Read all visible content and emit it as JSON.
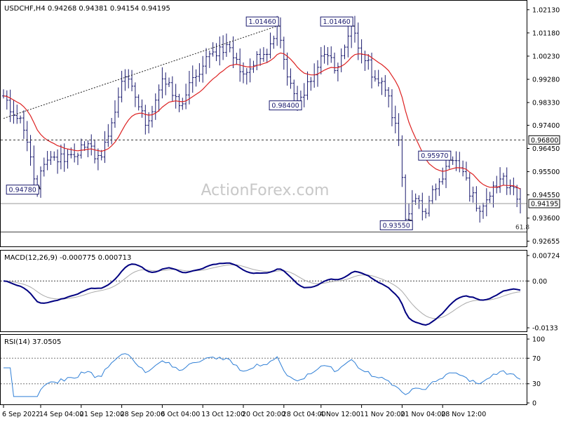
{
  "chart_data": [
    {
      "type": "ohlc",
      "title": "USDCHF,H4 0.94268 0.94381 0.94154 0.94195",
      "watermark": "ActionForex.com",
      "y_ticks": [
        "1.02130",
        "1.01180",
        "1.00230",
        "0.99280",
        "0.98330",
        "0.97400",
        "0.96450",
        "0.95500",
        "0.94550",
        "0.93600",
        "0.92655"
      ],
      "ylim": [
        0.9247,
        1.0247
      ],
      "current_price_label": "0.94195",
      "current_price": 0.94195,
      "level_label": "0.96800",
      "level": 0.968,
      "fib_label": "61.8",
      "fib_level": 0.9303,
      "annotations": [
        {
          "text": "1.01460",
          "price": 1.0146,
          "bar": 81
        },
        {
          "text": "1.01460",
          "price": 1.0146,
          "bar": 103
        },
        {
          "text": "0.98400",
          "price": 0.984,
          "bar": 87
        },
        {
          "text": "0.94780",
          "price": 0.9478,
          "bar": 10
        },
        {
          "text": "0.95970",
          "price": 0.9597,
          "bar": 132
        },
        {
          "text": "0.93550",
          "price": 0.9355,
          "bar": 119
        }
      ],
      "trendline": {
        "from": {
          "bar": 0,
          "price": 0.9768
        },
        "to": {
          "bar": 81,
          "price": 1.0146
        }
      },
      "key_points": [
        {
          "bar": 0,
          "price": 0.986
        },
        {
          "bar": 3,
          "price": 0.978
        },
        {
          "bar": 6,
          "price": 0.972
        },
        {
          "bar": 10,
          "price": 0.948
        },
        {
          "bar": 12,
          "price": 0.958
        },
        {
          "bar": 20,
          "price": 0.962
        },
        {
          "bar": 24,
          "price": 0.965
        },
        {
          "bar": 29,
          "price": 0.961
        },
        {
          "bar": 32,
          "price": 0.975
        },
        {
          "bar": 35,
          "price": 0.992
        },
        {
          "bar": 38,
          "price": 0.99
        },
        {
          "bar": 42,
          "price": 0.974
        },
        {
          "bar": 47,
          "price": 0.993
        },
        {
          "bar": 52,
          "price": 0.982
        },
        {
          "bar": 57,
          "price": 0.994
        },
        {
          "bar": 62,
          "price": 1.004
        },
        {
          "bar": 66,
          "price": 1.007
        },
        {
          "bar": 71,
          "price": 0.995
        },
        {
          "bar": 77,
          "price": 1.003
        },
        {
          "bar": 81,
          "price": 1.0146
        },
        {
          "bar": 83,
          "price": 1.001
        },
        {
          "bar": 87,
          "price": 0.984
        },
        {
          "bar": 91,
          "price": 0.992
        },
        {
          "bar": 95,
          "price": 1.003
        },
        {
          "bar": 99,
          "price": 0.998
        },
        {
          "bar": 103,
          "price": 1.0146
        },
        {
          "bar": 106,
          "price": 1.003
        },
        {
          "bar": 110,
          "price": 0.993
        },
        {
          "bar": 114,
          "price": 0.986
        },
        {
          "bar": 117,
          "price": 0.968
        },
        {
          "bar": 119,
          "price": 0.9355
        },
        {
          "bar": 122,
          "price": 0.944
        },
        {
          "bar": 125,
          "price": 0.938
        },
        {
          "bar": 128,
          "price": 0.948
        },
        {
          "bar": 132,
          "price": 0.9597
        },
        {
          "bar": 136,
          "price": 0.955
        },
        {
          "bar": 140,
          "price": 0.94
        },
        {
          "bar": 144,
          "price": 0.945
        },
        {
          "bar": 147,
          "price": 0.952
        },
        {
          "bar": 150,
          "price": 0.949
        },
        {
          "bar": 153,
          "price": 0.94195
        }
      ],
      "bars_count": 154,
      "moving_average": "smoothed close (red line)",
      "colors": {
        "bars": "#1a1a6e",
        "ma": "#dd2222",
        "labels_border": "#1a1a6e",
        "grid_dash": "#333333"
      }
    },
    {
      "type": "line",
      "title": "MACD(12,26,9) -0.000775 0.000713",
      "y_ticks": [
        "0.00724",
        "0.00",
        "-0.0133"
      ],
      "colors": {
        "macd": "#000080",
        "signal": "#aaaaaa"
      }
    },
    {
      "type": "line",
      "title": "RSI(14) 37.0505",
      "y_ticks": [
        "100",
        "70",
        "30",
        "0"
      ],
      "ylim": [
        0,
        100
      ],
      "levels": [
        70,
        30
      ],
      "colors": {
        "rsi": "#2f7fd6"
      }
    }
  ],
  "x_ticks": [
    {
      "label": "6 Sep 2022",
      "bar": 0
    },
    {
      "label": "14 Sep 04:00",
      "bar": 11
    },
    {
      "label": "21 Sep 12:00",
      "bar": 23
    },
    {
      "label": "28 Sep 20:00",
      "bar": 35
    },
    {
      "label": "6 Oct 04:00",
      "bar": 47
    },
    {
      "label": "13 Oct 12:00",
      "bar": 59
    },
    {
      "label": "20 Oct 20:00",
      "bar": 71
    },
    {
      "label": "28 Oct 04:00",
      "bar": 83
    },
    {
      "label": "4 Nov 12:00",
      "bar": 94
    },
    {
      "label": "11 Nov 20:00",
      "bar": 106
    },
    {
      "label": "21 Nov 04:00",
      "bar": 118
    },
    {
      "label": "28 Nov 12:00",
      "bar": 130
    }
  ]
}
